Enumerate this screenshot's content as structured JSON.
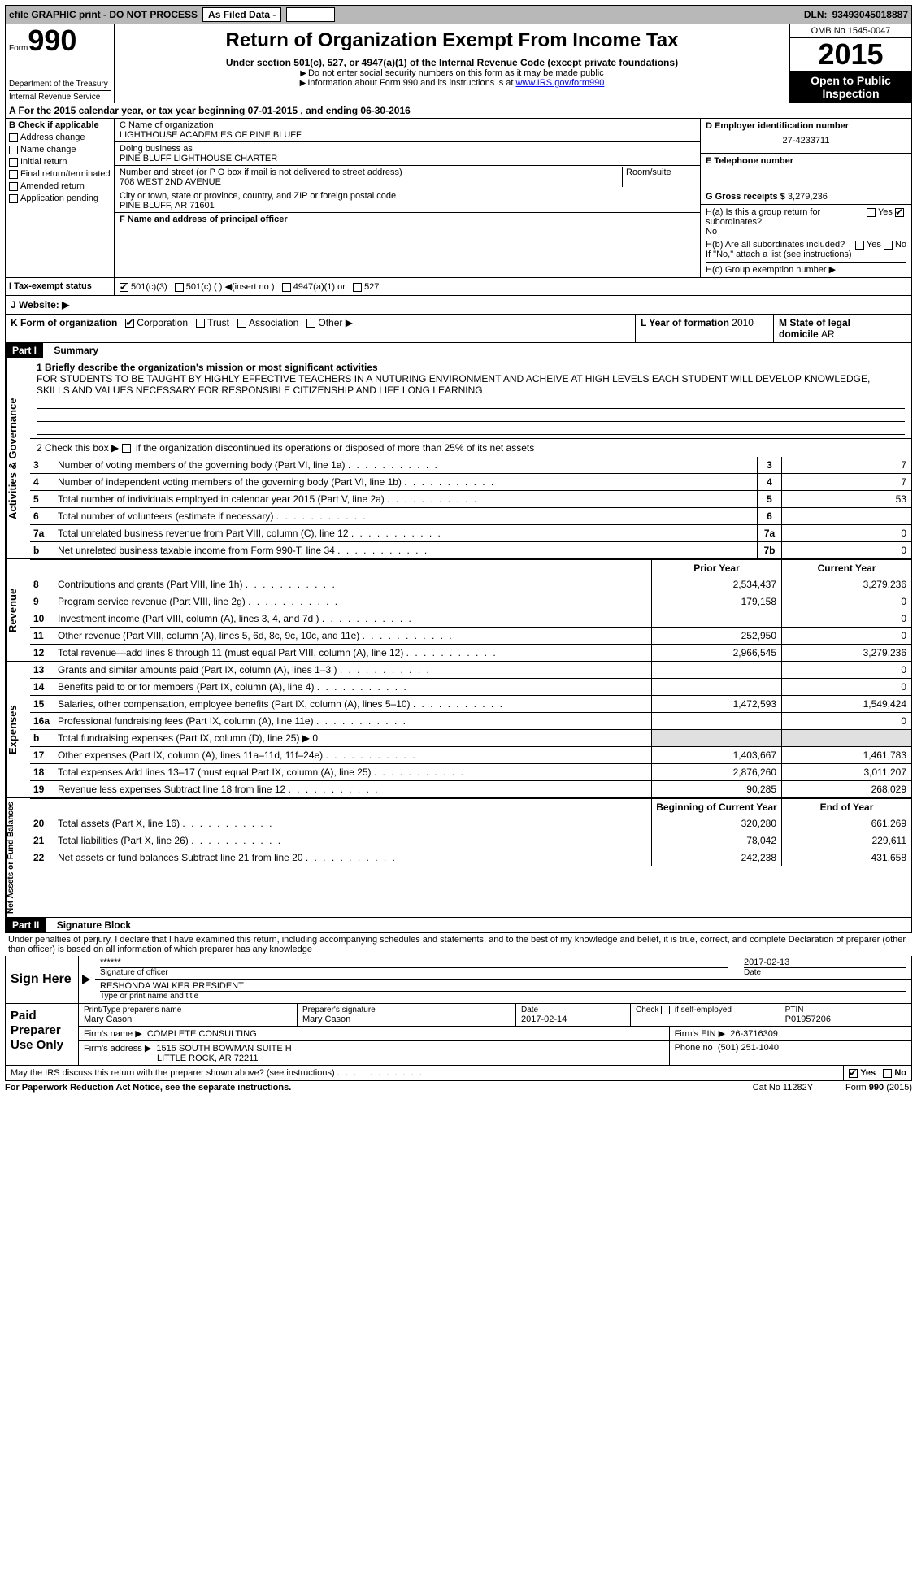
{
  "topbar": {
    "efile": "efile GRAPHIC print - DO NOT PROCESS",
    "asfiled": "As Filed Data -",
    "dln_label": "DLN:",
    "dln": "93493045018887"
  },
  "header": {
    "form": "Form",
    "formnum": "990",
    "dept": "Department of the Treasury",
    "irs": "Internal Revenue Service",
    "title": "Return of Organization Exempt From Income Tax",
    "sub": "Under section 501(c), 527, or 4947(a)(1) of the Internal Revenue Code (except private foundations)",
    "note1": "Do not enter social security numbers on this form as it may be made public",
    "note2_pre": "Information about Form 990 and its instructions is at ",
    "note2_link": "www.IRS.gov/form990",
    "omb": "OMB No 1545-0047",
    "year": "2015",
    "open": "Open to Public Inspection"
  },
  "rowA": {
    "text_pre": "A   For the 2015 calendar year, or tax year beginning ",
    "begin": "07-01-2015",
    "mid": " , and ending ",
    "end": "06-30-2016"
  },
  "colB": {
    "title": "B Check if applicable",
    "items": [
      "Address change",
      "Name change",
      "Initial return",
      "Final return/terminated",
      "Amended return",
      "Application pending"
    ]
  },
  "colC": {
    "name_lbl": "C Name of organization",
    "name": "LIGHTHOUSE ACADEMIES OF PINE BLUFF",
    "dba_lbl": "Doing business as",
    "dba": "PINE BLUFF LIGHTHOUSE CHARTER",
    "addr_lbl": "Number and street (or P O  box if mail is not delivered to street address)",
    "room_lbl": "Room/suite",
    "addr": "708 WEST 2ND AVENUE",
    "city_lbl": "City or town, state or province, country, and ZIP or foreign postal code",
    "city": "PINE BLUFF, AR  71601",
    "officer_lbl": "F Name and address of principal officer"
  },
  "colD": {
    "ein_lbl": "D Employer identification number",
    "ein": "27-4233711",
    "phone_lbl": "E Telephone number",
    "phone": "",
    "gross_lbl": "G Gross receipts $ ",
    "gross": "3,279,236"
  },
  "rowH": {
    "ha": "H(a)  Is this a group return for subordinates?",
    "ha_ans": "No",
    "hb": "H(b)  Are all subordinates included?",
    "hb_note": "If \"No,\" attach a list  (see instructions)",
    "hc": "H(c)   Group exemption number ▶"
  },
  "rowI": {
    "label": "I   Tax-exempt status",
    "opts": [
      "501(c)(3)",
      "501(c) (  ) ◀(insert no )",
      "4947(a)(1) or",
      "527"
    ]
  },
  "rowJ": {
    "label": "J  Website: ▶"
  },
  "rowK": {
    "label": "K Form of organization",
    "opts": [
      "Corporation",
      "Trust",
      "Association",
      "Other ▶"
    ],
    "l_label": "L Year of formation",
    "l_val": "2010",
    "m_label": "M State of legal domicile",
    "m_val": "AR"
  },
  "partI": {
    "header": "Part I",
    "title": "Summary",
    "q1": "1 Briefly describe the organization's mission or most significant activities",
    "mission": "FOR STUDENTS TO BE TAUGHT BY HIGHLY EFFECTIVE TEACHERS IN A NUTURING ENVIRONMENT AND ACHEIVE AT HIGH LEVELS  EACH STUDENT WILL DEVELOP KNOWLEDGE, SKILLS AND VALUES NECESSARY FOR RESPONSIBLE CITIZENSHIP AND LIFE LONG LEARNING",
    "q2": "2  Check this box ▶        if the organization discontinued its operations or disposed of more than 25% of its net assets",
    "sections": {
      "gov": "Activities & Governance",
      "rev": "Revenue",
      "exp": "Expenses",
      "net": "Net Assets or Fund Balances"
    },
    "govlines": [
      {
        "n": "3",
        "d": "Number of voting members of the governing body (Part VI, line 1a)",
        "i": "3",
        "v": "7"
      },
      {
        "n": "4",
        "d": "Number of independent voting members of the governing body (Part VI, line 1b)",
        "i": "4",
        "v": "7"
      },
      {
        "n": "5",
        "d": "Total number of individuals employed in calendar year 2015 (Part V, line 2a)",
        "i": "5",
        "v": "53"
      },
      {
        "n": "6",
        "d": "Total number of volunteers (estimate if necessary)",
        "i": "6",
        "v": ""
      },
      {
        "n": "7a",
        "d": "Total unrelated business revenue from Part VIII, column (C), line 12",
        "i": "7a",
        "v": "0"
      },
      {
        "n": "b",
        "d": "Net unrelated business taxable income from Form 990-T, line 34",
        "i": "7b",
        "v": "0"
      }
    ],
    "colheads": {
      "prior": "Prior Year",
      "current": "Current Year",
      "boy": "Beginning of Current Year",
      "eoy": "End of Year"
    },
    "revlines": [
      {
        "n": "8",
        "d": "Contributions and grants (Part VIII, line 1h)",
        "p": "2,534,437",
        "c": "3,279,236"
      },
      {
        "n": "9",
        "d": "Program service revenue (Part VIII, line 2g)",
        "p": "179,158",
        "c": "0"
      },
      {
        "n": "10",
        "d": "Investment income (Part VIII, column (A), lines 3, 4, and 7d )",
        "p": "",
        "c": "0"
      },
      {
        "n": "11",
        "d": "Other revenue (Part VIII, column (A), lines 5, 6d, 8c, 9c, 10c, and 11e)",
        "p": "252,950",
        "c": "0"
      },
      {
        "n": "12",
        "d": "Total revenue—add lines 8 through 11 (must equal Part VIII, column (A), line 12)",
        "p": "2,966,545",
        "c": "3,279,236"
      }
    ],
    "explines": [
      {
        "n": "13",
        "d": "Grants and similar amounts paid (Part IX, column (A), lines 1–3 )",
        "p": "",
        "c": "0"
      },
      {
        "n": "14",
        "d": "Benefits paid to or for members (Part IX, column (A), line 4)",
        "p": "",
        "c": "0"
      },
      {
        "n": "15",
        "d": "Salaries, other compensation, employee benefits (Part IX, column (A), lines 5–10)",
        "p": "1,472,593",
        "c": "1,549,424"
      },
      {
        "n": "16a",
        "d": "Professional fundraising fees (Part IX, column (A), line 11e)",
        "p": "",
        "c": "0"
      },
      {
        "n": "b",
        "d": "Total fundraising expenses (Part IX, column (D), line 25) ▶ 0",
        "p": "",
        "c": "",
        "noval": true
      },
      {
        "n": "17",
        "d": "Other expenses (Part IX, column (A), lines 11a–11d, 11f–24e)",
        "p": "1,403,667",
        "c": "1,461,783"
      },
      {
        "n": "18",
        "d": "Total expenses  Add lines 13–17 (must equal Part IX, column (A), line 25)",
        "p": "2,876,260",
        "c": "3,011,207"
      },
      {
        "n": "19",
        "d": "Revenue less expenses  Subtract line 18 from line 12",
        "p": "90,285",
        "c": "268,029"
      }
    ],
    "netlines": [
      {
        "n": "20",
        "d": "Total assets (Part X, line 16)",
        "p": "320,280",
        "c": "661,269"
      },
      {
        "n": "21",
        "d": "Total liabilities (Part X, line 26)",
        "p": "78,042",
        "c": "229,611"
      },
      {
        "n": "22",
        "d": "Net assets or fund balances  Subtract line 21 from line 20",
        "p": "242,238",
        "c": "431,658"
      }
    ]
  },
  "partII": {
    "header": "Part II",
    "title": "Signature Block",
    "perjury": "Under penalties of perjury, I declare that I have examined this return, including accompanying schedules and statements, and to the best of my knowledge and belief, it is true, correct, and complete  Declaration of preparer (other than officer) is based on all information of which preparer has any knowledge"
  },
  "sign": {
    "label": "Sign Here",
    "sig": "******",
    "sig_lbl": "Signature of officer",
    "date": "2017-02-13",
    "date_lbl": "Date",
    "name": "RESHONDA WALKER PRESIDENT",
    "name_lbl": "Type or print name and title"
  },
  "prep": {
    "label": "Paid Preparer Use Only",
    "name_lbl": "Print/Type preparer's name",
    "name": "Mary Cason",
    "sig_lbl": "Preparer's signature",
    "sig": "Mary Cason",
    "pdate_lbl": "Date",
    "pdate": "2017-02-14",
    "check_lbl": "Check          if self-employed",
    "ptin_lbl": "PTIN",
    "ptin": "P01957206",
    "firm_lbl": "Firm's name   ▶",
    "firm": "COMPLETE CONSULTING",
    "fein_lbl": "Firm's EIN ▶",
    "fein": "26-3716309",
    "addr_lbl": "Firm's address ▶",
    "addr": "1515 SOUTH BOWMAN SUITE H",
    "addr2": "LITTLE ROCK, AR  72211",
    "phone_lbl": "Phone no",
    "phone": "(501) 251-1040"
  },
  "footer": {
    "discuss": "May the IRS discuss this return with the preparer shown above? (see instructions)",
    "yes": "Yes",
    "no": "No",
    "paperwork": "For Paperwork Reduction Act Notice, see the separate instructions.",
    "cat": "Cat No  11282Y",
    "form": "Form 990 (2015)"
  }
}
